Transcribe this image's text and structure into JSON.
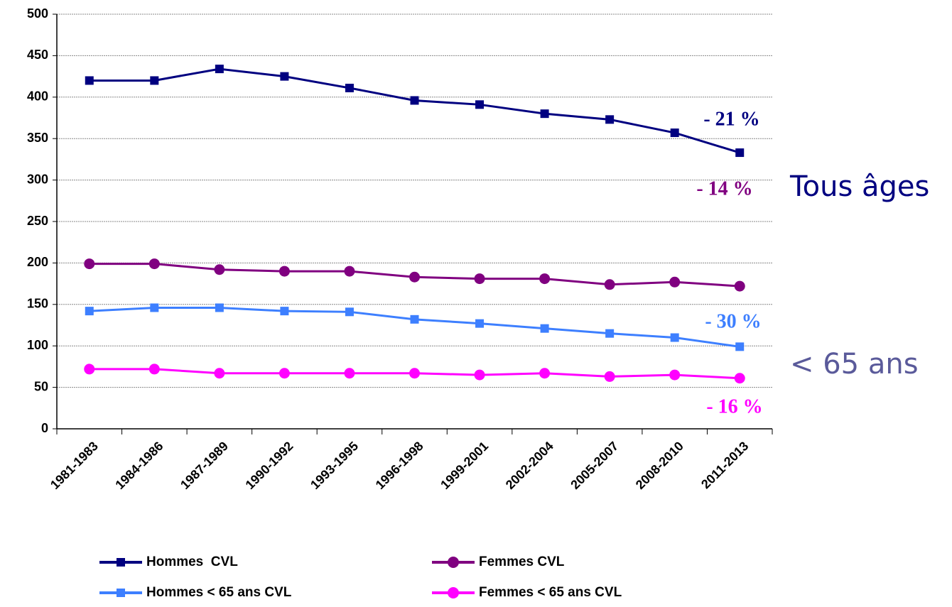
{
  "chart_data": {
    "type": "line",
    "categories": [
      "1981-1983",
      "1984-1986",
      "1987-1989",
      "1990-1992",
      "1993-1995",
      "1996-1998",
      "1999-2001",
      "2002-2004",
      "2005-2007",
      "2008-2010",
      "2011-2013"
    ],
    "series": [
      {
        "name": "Hommes  CVL",
        "color": "#000080",
        "marker": "square",
        "values": [
          420,
          420,
          434,
          425,
          411,
          396,
          391,
          380,
          373,
          357,
          333
        ]
      },
      {
        "name": "Femmes CVL",
        "color": "#800080",
        "marker": "circle",
        "values": [
          199,
          199,
          192,
          190,
          190,
          183,
          181,
          181,
          174,
          177,
          172
        ]
      },
      {
        "name": "Hommes < 65 ans CVL",
        "color": "#3d7fff",
        "marker": "square",
        "values": [
          142,
          146,
          146,
          142,
          141,
          132,
          127,
          121,
          115,
          110,
          99
        ]
      },
      {
        "name": "Femmes < 65 ans CVL",
        "color": "#ff00ff",
        "marker": "circle",
        "values": [
          72,
          72,
          67,
          67,
          67,
          67,
          65,
          67,
          63,
          65,
          61
        ]
      }
    ],
    "ylim": [
      0,
      500
    ],
    "yticks": [
      0,
      50,
      100,
      150,
      200,
      250,
      300,
      350,
      400,
      450,
      500
    ],
    "grid": true,
    "annotations": [
      {
        "text": "- 21 %",
        "color": "#000080"
      },
      {
        "text": "- 14 %",
        "color": "#800080"
      },
      {
        "text": "- 30 %",
        "color": "#3d7fff"
      },
      {
        "text": "- 16 %",
        "color": "#ff00ff"
      }
    ],
    "side_labels": [
      {
        "text": "Tous âges",
        "color": "#000080"
      },
      {
        "text": "< 65 ans",
        "color": "#5a5a9a"
      }
    ]
  }
}
